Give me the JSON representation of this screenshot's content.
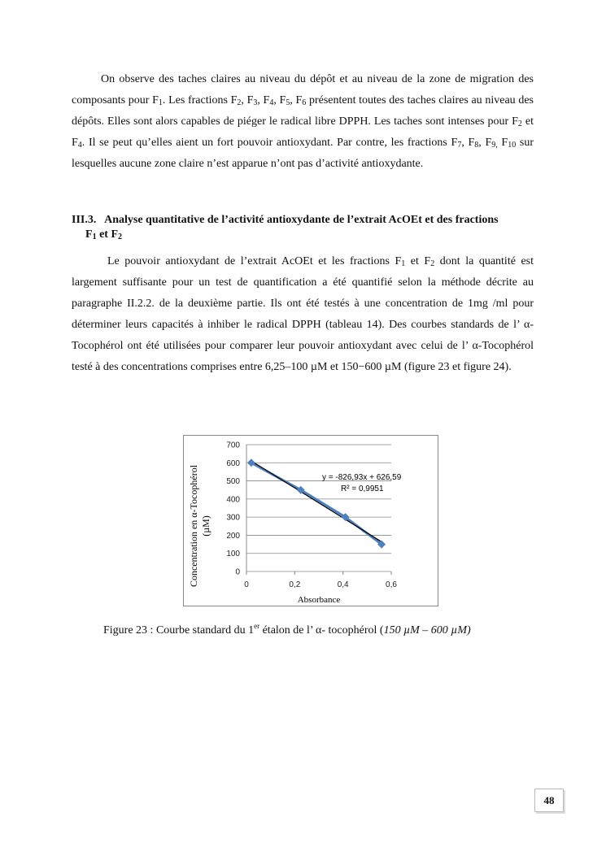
{
  "paragraphs": {
    "p1": [
      [
        "On observe des taches claires au niveau du dépôt et au niveau de la zone de migration des composants pour F",
        ""
      ],
      [
        "1",
        "sub"
      ],
      [
        ".  Les fractions F",
        ""
      ],
      [
        "2",
        "sub"
      ],
      [
        ", F",
        ""
      ],
      [
        "3",
        "sub"
      ],
      [
        ", F",
        ""
      ],
      [
        "4",
        "sub"
      ],
      [
        ", F",
        ""
      ],
      [
        "5",
        "sub"
      ],
      [
        ", F",
        ""
      ],
      [
        "6",
        "sub"
      ],
      [
        " présentent toutes des taches claires au niveau des dépôts. Elles sont  alors capables de piéger le radical  libre DPPH. Les taches sont intenses pour F",
        ""
      ],
      [
        "2",
        "sub"
      ],
      [
        " et F",
        ""
      ],
      [
        "4",
        "sub"
      ],
      [
        ". Il se peut qu’elles aient un fort pouvoir antioxydant. Par contre, les fractions F",
        ""
      ],
      [
        "7",
        "sub"
      ],
      [
        ", F",
        ""
      ],
      [
        "8",
        "sub"
      ],
      [
        ", F",
        ""
      ],
      [
        "9,",
        "sub"
      ],
      [
        " F",
        ""
      ],
      [
        "10",
        "sub"
      ],
      [
        " sur lesquelles aucune zone claire n’est apparue n’ont pas d’activité antioxydante.",
        ""
      ]
    ],
    "p2": [
      [
        "Le pouvoir antioxydant de l’extrait AcOEt et les fractions F",
        ""
      ],
      [
        "1",
        "sub"
      ],
      [
        " et F",
        ""
      ],
      [
        "2",
        "sub"
      ],
      [
        " dont la quantité est largement suffisante pour un test de quantification a été quantifié selon la méthode décrite au paragraphe II.2.2. de la deuxième partie. Ils ont été testés à une concentration de 1mg /ml pour déterminer leurs capacités à inhiber le radical DPPH (tableau 14). Des courbes standards de l’ α-Tocophérol ont été utilisées pour comparer leur pouvoir antioxydant  avec celui de l’ α-Tocophérol testé à des concentrations comprises entre 6,25–100 µM et 150−600 µM (figure 23 et figure 24).",
        ""
      ]
    ]
  },
  "heading": {
    "number": "III.3.",
    "line1": "Analyse quantitative de l’activité antioxydante de l’extrait AcOEt et des fractions",
    "line2": [
      [
        "F",
        ""
      ],
      [
        "1",
        "sub"
      ],
      [
        " et F",
        ""
      ],
      [
        "2",
        "sub"
      ]
    ]
  },
  "chart_data": {
    "type": "scatter",
    "xlabel": "Absorbance",
    "ylabel": "Concentration en α-Tocophérol (µM)",
    "ylabel_lines": [
      "Concentration en α-Tocophérol",
      "(µM)"
    ],
    "x": [
      0.02,
      0.225,
      0.41,
      0.56
    ],
    "y": [
      600,
      450,
      300,
      150
    ],
    "xlim": [
      0,
      0.6
    ],
    "ylim": [
      0,
      700
    ],
    "x_ticks": [
      "0",
      "0,2",
      "0,4",
      "0,6"
    ],
    "x_tick_values": [
      0,
      0.2,
      0.4,
      0.6
    ],
    "y_ticks": [
      "0",
      "100",
      "200",
      "300",
      "400",
      "500",
      "600",
      "700"
    ],
    "y_tick_values": [
      0,
      100,
      200,
      300,
      400,
      500,
      600,
      700
    ],
    "grid": "horizontal",
    "series_color": "#4f81bd",
    "trendline": {
      "slope": -826.93,
      "intercept": 626.59,
      "color": "#000000"
    },
    "annotations": [
      "y = -826,93x + 626,59",
      "R² = 0,9951"
    ]
  },
  "caption": {
    "prefix": "Figure 23 : Courbe  standard du 1",
    "sup": "er",
    "middle": " étalon de l’ α- tocophérol (",
    "italic": "150 µM – 600 µM)"
  },
  "page_number": "48"
}
